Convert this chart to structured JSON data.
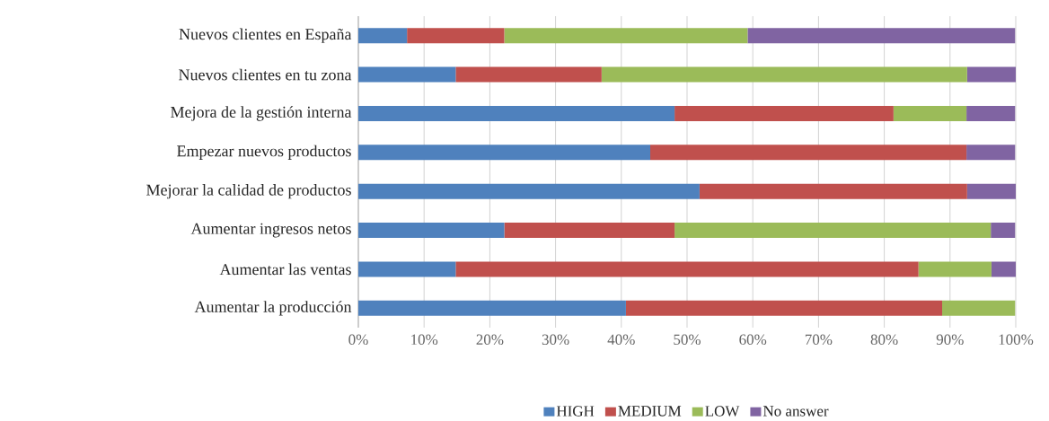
{
  "chart_data": {
    "type": "bar",
    "orientation": "horizontal",
    "stacked": true,
    "categories": [
      "Nuevos clientes en España",
      "Nuevos clientes en tu zona",
      "Mejora de la gestión interna",
      "Empezar nuevos productos",
      "Mejorar la calidad de productos",
      "Aumentar ingresos netos",
      "Aumentar las ventas",
      "Aumentar la producción"
    ],
    "series": [
      {
        "name": "HIGH",
        "color": "#4f81bd",
        "values": [
          7.4,
          14.8,
          48.1,
          44.4,
          51.9,
          22.2,
          14.8,
          40.7
        ]
      },
      {
        "name": "MEDIUM",
        "color": "#c0504d",
        "values": [
          14.8,
          22.2,
          33.3,
          48.1,
          40.7,
          25.9,
          70.4,
          48.1
        ]
      },
      {
        "name": "LOW",
        "color": "#9bbb59",
        "values": [
          37.0,
          55.6,
          11.1,
          0,
          0,
          48.1,
          11.1,
          11.1
        ]
      },
      {
        "name": "No answer",
        "color": "#8064a2",
        "values": [
          40.7,
          7.4,
          7.4,
          7.4,
          7.4,
          3.7,
          3.7,
          0
        ]
      }
    ],
    "xlim": [
      0,
      100
    ],
    "xticks": [
      {
        "value": 0,
        "label": "0%"
      },
      {
        "value": 10,
        "label": "10%"
      },
      {
        "value": 20,
        "label": "20%"
      },
      {
        "value": 30,
        "label": "30%"
      },
      {
        "value": 40,
        "label": "40%"
      },
      {
        "value": 50,
        "label": "50%"
      },
      {
        "value": 60,
        "label": "60%"
      },
      {
        "value": 70,
        "label": "70%"
      },
      {
        "value": 80,
        "label": "80%"
      },
      {
        "value": 90,
        "label": "90%"
      },
      {
        "value": 100,
        "label": "100%"
      }
    ],
    "grid": "x",
    "legend": "bottom"
  }
}
